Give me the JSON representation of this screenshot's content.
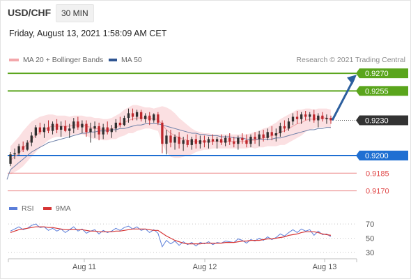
{
  "header": {
    "pair": "USD/CHF",
    "timeframe": "30 MIN",
    "datetime": "Friday, August 13, 2021 1:58:09 AM CET"
  },
  "legend": {
    "ma20_label": "MA 20 + Bollinger Bands",
    "ma50_label": "MA 50",
    "rsi_label": "RSI",
    "ma9_label": "9MA"
  },
  "credit": "Research © 2021 Trading Central",
  "colors": {
    "resistance": "#5aa51c",
    "pivot": "#333333",
    "support1": "#1f6fd2",
    "support_minor": "#e04848",
    "candle_up": "#2f2f2f",
    "candle_down": "#c0282d",
    "bollinger": "#fbe0e2",
    "ma20": "#f3a7ab",
    "ma50": "#6d7fa8",
    "rsi": "#5b7ed9",
    "rsi_ma": "#d63434",
    "arrow": "#2c5f9e"
  },
  "chart_data": {
    "type": "candlestick",
    "x_labels": [
      "Aug 11",
      "Aug 12",
      "Aug 13"
    ],
    "levels": [
      {
        "value": "0.9270",
        "kind": "resistance"
      },
      {
        "value": "0.9255",
        "kind": "resistance"
      },
      {
        "value": "0.9230",
        "kind": "pivot"
      },
      {
        "value": "0.9200",
        "kind": "support"
      },
      {
        "value": "0.9185",
        "kind": "support_minor"
      },
      {
        "value": "0.9170",
        "kind": "support_minor"
      }
    ],
    "price_range": [
      0.9165,
      0.9276
    ],
    "projection": {
      "from": 0.923,
      "to": 0.927
    },
    "candles": [
      [
        0.9193,
        0.9203,
        0.9191,
        0.9201
      ],
      [
        0.9201,
        0.9206,
        0.9197,
        0.9202
      ],
      [
        0.9202,
        0.921,
        0.92,
        0.9208
      ],
      [
        0.9208,
        0.9212,
        0.9203,
        0.9205
      ],
      [
        0.9205,
        0.9213,
        0.9204,
        0.9211
      ],
      [
        0.9211,
        0.922,
        0.9208,
        0.9217
      ],
      [
        0.9217,
        0.9226,
        0.9215,
        0.9224
      ],
      [
        0.9224,
        0.9228,
        0.9218,
        0.922
      ],
      [
        0.922,
        0.9227,
        0.9215,
        0.9224
      ],
      [
        0.9224,
        0.923,
        0.9219,
        0.9221
      ],
      [
        0.9221,
        0.9229,
        0.9218,
        0.9227
      ],
      [
        0.9227,
        0.9231,
        0.9219,
        0.9222
      ],
      [
        0.9222,
        0.9229,
        0.9216,
        0.9225
      ],
      [
        0.9225,
        0.923,
        0.922,
        0.9221
      ],
      [
        0.9221,
        0.9227,
        0.9215,
        0.9223
      ],
      [
        0.9223,
        0.9232,
        0.9219,
        0.9229
      ],
      [
        0.9229,
        0.9233,
        0.9222,
        0.9224
      ],
      [
        0.9224,
        0.923,
        0.9219,
        0.9227
      ],
      [
        0.9227,
        0.923,
        0.9216,
        0.922
      ],
      [
        0.922,
        0.9228,
        0.9211,
        0.9223
      ],
      [
        0.9223,
        0.9229,
        0.9215,
        0.9225
      ],
      [
        0.9225,
        0.9228,
        0.9213,
        0.9218
      ],
      [
        0.9218,
        0.9227,
        0.9214,
        0.9224
      ],
      [
        0.9224,
        0.9229,
        0.9218,
        0.922
      ],
      [
        0.922,
        0.9226,
        0.9215,
        0.9223
      ],
      [
        0.9223,
        0.9231,
        0.922,
        0.9228
      ],
      [
        0.9228,
        0.9233,
        0.9224,
        0.9226
      ],
      [
        0.9226,
        0.9234,
        0.9225,
        0.9232
      ],
      [
        0.9232,
        0.924,
        0.9228,
        0.9236
      ],
      [
        0.9236,
        0.924,
        0.923,
        0.9233
      ],
      [
        0.9233,
        0.9239,
        0.923,
        0.9237
      ],
      [
        0.9237,
        0.9239,
        0.9229,
        0.9231
      ],
      [
        0.9231,
        0.9236,
        0.9228,
        0.9234
      ],
      [
        0.9234,
        0.9237,
        0.9226,
        0.923
      ],
      [
        0.923,
        0.9236,
        0.9228,
        0.9235
      ],
      [
        0.9235,
        0.9237,
        0.9226,
        0.9228
      ],
      [
        0.9228,
        0.923,
        0.9202,
        0.921
      ],
      [
        0.921,
        0.9222,
        0.9201,
        0.9217
      ],
      [
        0.9217,
        0.9222,
        0.9207,
        0.9211
      ],
      [
        0.9211,
        0.9218,
        0.9205,
        0.9216
      ],
      [
        0.9216,
        0.922,
        0.9206,
        0.921
      ],
      [
        0.921,
        0.9216,
        0.9204,
        0.9213
      ],
      [
        0.9213,
        0.9218,
        0.9207,
        0.9209
      ],
      [
        0.9209,
        0.9216,
        0.9205,
        0.9214
      ],
      [
        0.9214,
        0.9218,
        0.9206,
        0.921
      ],
      [
        0.921,
        0.9217,
        0.9206,
        0.9213
      ],
      [
        0.9213,
        0.9217,
        0.9207,
        0.9211
      ],
      [
        0.9211,
        0.9216,
        0.9206,
        0.9214
      ],
      [
        0.9214,
        0.9218,
        0.9209,
        0.9212
      ],
      [
        0.9212,
        0.9216,
        0.9206,
        0.9214
      ],
      [
        0.9214,
        0.9218,
        0.9209,
        0.9211
      ],
      [
        0.9211,
        0.9217,
        0.9208,
        0.9215
      ],
      [
        0.9215,
        0.9219,
        0.9209,
        0.9212
      ],
      [
        0.9212,
        0.9216,
        0.9207,
        0.921
      ],
      [
        0.921,
        0.9217,
        0.9205,
        0.9215
      ],
      [
        0.9215,
        0.9219,
        0.921,
        0.9213
      ],
      [
        0.9213,
        0.9218,
        0.9207,
        0.921
      ],
      [
        0.921,
        0.9218,
        0.9207,
        0.9216
      ],
      [
        0.9216,
        0.922,
        0.921,
        0.9214
      ],
      [
        0.9214,
        0.9221,
        0.9208,
        0.9218
      ],
      [
        0.9218,
        0.9222,
        0.9212,
        0.9215
      ],
      [
        0.9215,
        0.9223,
        0.9213,
        0.922
      ],
      [
        0.922,
        0.9225,
        0.9213,
        0.9217
      ],
      [
        0.9217,
        0.9223,
        0.9212,
        0.9219
      ],
      [
        0.9219,
        0.9228,
        0.9216,
        0.9225
      ],
      [
        0.9225,
        0.923,
        0.922,
        0.9223
      ],
      [
        0.9223,
        0.9232,
        0.9221,
        0.9229
      ],
      [
        0.9229,
        0.9236,
        0.9226,
        0.9233
      ],
      [
        0.9233,
        0.9238,
        0.9227,
        0.9231
      ],
      [
        0.9231,
        0.9237,
        0.9227,
        0.9235
      ],
      [
        0.9235,
        0.9238,
        0.923,
        0.9233
      ],
      [
        0.9233,
        0.9237,
        0.9229,
        0.9235
      ],
      [
        0.9235,
        0.9239,
        0.9228,
        0.923
      ],
      [
        0.923,
        0.9236,
        0.9224,
        0.9234
      ],
      [
        0.9234,
        0.9237,
        0.9229,
        0.9231
      ],
      [
        0.9231,
        0.9235,
        0.9227,
        0.9232
      ],
      [
        0.9232,
        0.9234,
        0.9227,
        0.923
      ]
    ],
    "ma20": [
      0.9196,
      0.9199,
      0.9202,
      0.9206,
      0.921,
      0.9214,
      0.9217,
      0.922,
      0.9222,
      0.9224,
      0.9225,
      0.9225,
      0.9225,
      0.9225,
      0.9225,
      0.9226,
      0.9226,
      0.9226,
      0.9225,
      0.9224,
      0.9223,
      0.9223,
      0.9222,
      0.9222,
      0.9223,
      0.9224,
      0.9226,
      0.9228,
      0.923,
      0.9231,
      0.9232,
      0.9232,
      0.9232,
      0.9232,
      0.9231,
      0.9231,
      0.9226,
      0.9222,
      0.9219,
      0.9217,
      0.9215,
      0.9214,
      0.9213,
      0.9212,
      0.9212,
      0.9212,
      0.9212,
      0.9212,
      0.9212,
      0.9212,
      0.9212,
      0.9212,
      0.9212,
      0.9212,
      0.9212,
      0.9212,
      0.9212,
      0.9213,
      0.9213,
      0.9214,
      0.9215,
      0.9216,
      0.9217,
      0.9218,
      0.922,
      0.9221,
      0.9223,
      0.9225,
      0.9227,
      0.9228,
      0.923,
      0.9231,
      0.9231,
      0.9232,
      0.9232,
      0.9232,
      0.9231
    ],
    "bollinger_width": [
      0.0012,
      0.0013,
      0.0014,
      0.0015,
      0.0015,
      0.0015,
      0.0014,
      0.0013,
      0.0012,
      0.0011,
      0.001,
      0.0009,
      0.0009,
      0.0009,
      0.0008,
      0.0008,
      0.0008,
      0.0008,
      0.0008,
      0.0009,
      0.0009,
      0.0009,
      0.0009,
      0.0009,
      0.0009,
      0.001,
      0.001,
      0.0011,
      0.0011,
      0.0012,
      0.0011,
      0.001,
      0.0009,
      0.0009,
      0.0009,
      0.001,
      0.0016,
      0.0019,
      0.002,
      0.0019,
      0.0017,
      0.0015,
      0.0013,
      0.0011,
      0.0009,
      0.0008,
      0.0007,
      0.0007,
      0.0006,
      0.0006,
      0.0006,
      0.0006,
      0.0006,
      0.0006,
      0.0006,
      0.0006,
      0.0006,
      0.0006,
      0.0007,
      0.0007,
      0.0008,
      0.0008,
      0.0009,
      0.001,
      0.0011,
      0.0012,
      0.0012,
      0.0012,
      0.0012,
      0.0011,
      0.001,
      0.0009,
      0.0008,
      0.0008,
      0.0008,
      0.0008,
      0.0008
    ],
    "ma50": [
      0.9188,
      0.9191,
      0.9194,
      0.9197,
      0.92,
      0.9203,
      0.9205,
      0.9207,
      0.9209,
      0.9211,
      0.9212,
      0.9213,
      0.9214,
      0.9215,
      0.9216,
      0.9217,
      0.9218,
      0.9219,
      0.9219,
      0.922,
      0.922,
      0.9221,
      0.9221,
      0.9221,
      0.9222,
      0.9222,
      0.9223,
      0.9223,
      0.9224,
      0.9225,
      0.9226,
      0.9226,
      0.9227,
      0.9227,
      0.9227,
      0.9227,
      0.9226,
      0.9225,
      0.9224,
      0.9223,
      0.9222,
      0.9221,
      0.922,
      0.9219,
      0.9219,
      0.9218,
      0.9218,
      0.9217,
      0.9217,
      0.9217,
      0.9216,
      0.9216,
      0.9216,
      0.9215,
      0.9215,
      0.9215,
      0.9214,
      0.9214,
      0.9214,
      0.9214,
      0.9214,
      0.9214,
      0.9214,
      0.9215,
      0.9215,
      0.9216,
      0.9217,
      0.9218,
      0.9219,
      0.922,
      0.9221,
      0.9222,
      0.9222,
      0.9223,
      0.9223,
      0.9224,
      0.9224
    ],
    "rsi": {
      "ticks": [
        70,
        50,
        30
      ],
      "range": [
        22,
        78
      ],
      "values": [
        60,
        63,
        66,
        62,
        64,
        68,
        70,
        65,
        66,
        61,
        64,
        60,
        63,
        58,
        62,
        66,
        60,
        63,
        57,
        60,
        62,
        56,
        61,
        58,
        60,
        64,
        61,
        65,
        67,
        63,
        66,
        61,
        63,
        58,
        62,
        57,
        38,
        47,
        42,
        46,
        40,
        45,
        41,
        44,
        39,
        44,
        42,
        45,
        41,
        44,
        43,
        46,
        45,
        44,
        49,
        47,
        43,
        48,
        46,
        50,
        47,
        52,
        48,
        51,
        56,
        53,
        58,
        62,
        58,
        63,
        60,
        62,
        54,
        60,
        55,
        56,
        52
      ],
      "ma": [
        58,
        60,
        62,
        63,
        64,
        65,
        66,
        66,
        66,
        65,
        65,
        64,
        63,
        62,
        62,
        62,
        62,
        62,
        61,
        60,
        60,
        59,
        59,
        59,
        59,
        60,
        60,
        61,
        62,
        63,
        63,
        63,
        63,
        62,
        61,
        61,
        57,
        53,
        50,
        47,
        45,
        43,
        42,
        42,
        42,
        42,
        43,
        43,
        43,
        43,
        43,
        44,
        44,
        44,
        45,
        46,
        46,
        47,
        47,
        47,
        48,
        49,
        49,
        50,
        51,
        52,
        54,
        55,
        56,
        58,
        59,
        59,
        59,
        58,
        56,
        55,
        54
      ]
    }
  }
}
